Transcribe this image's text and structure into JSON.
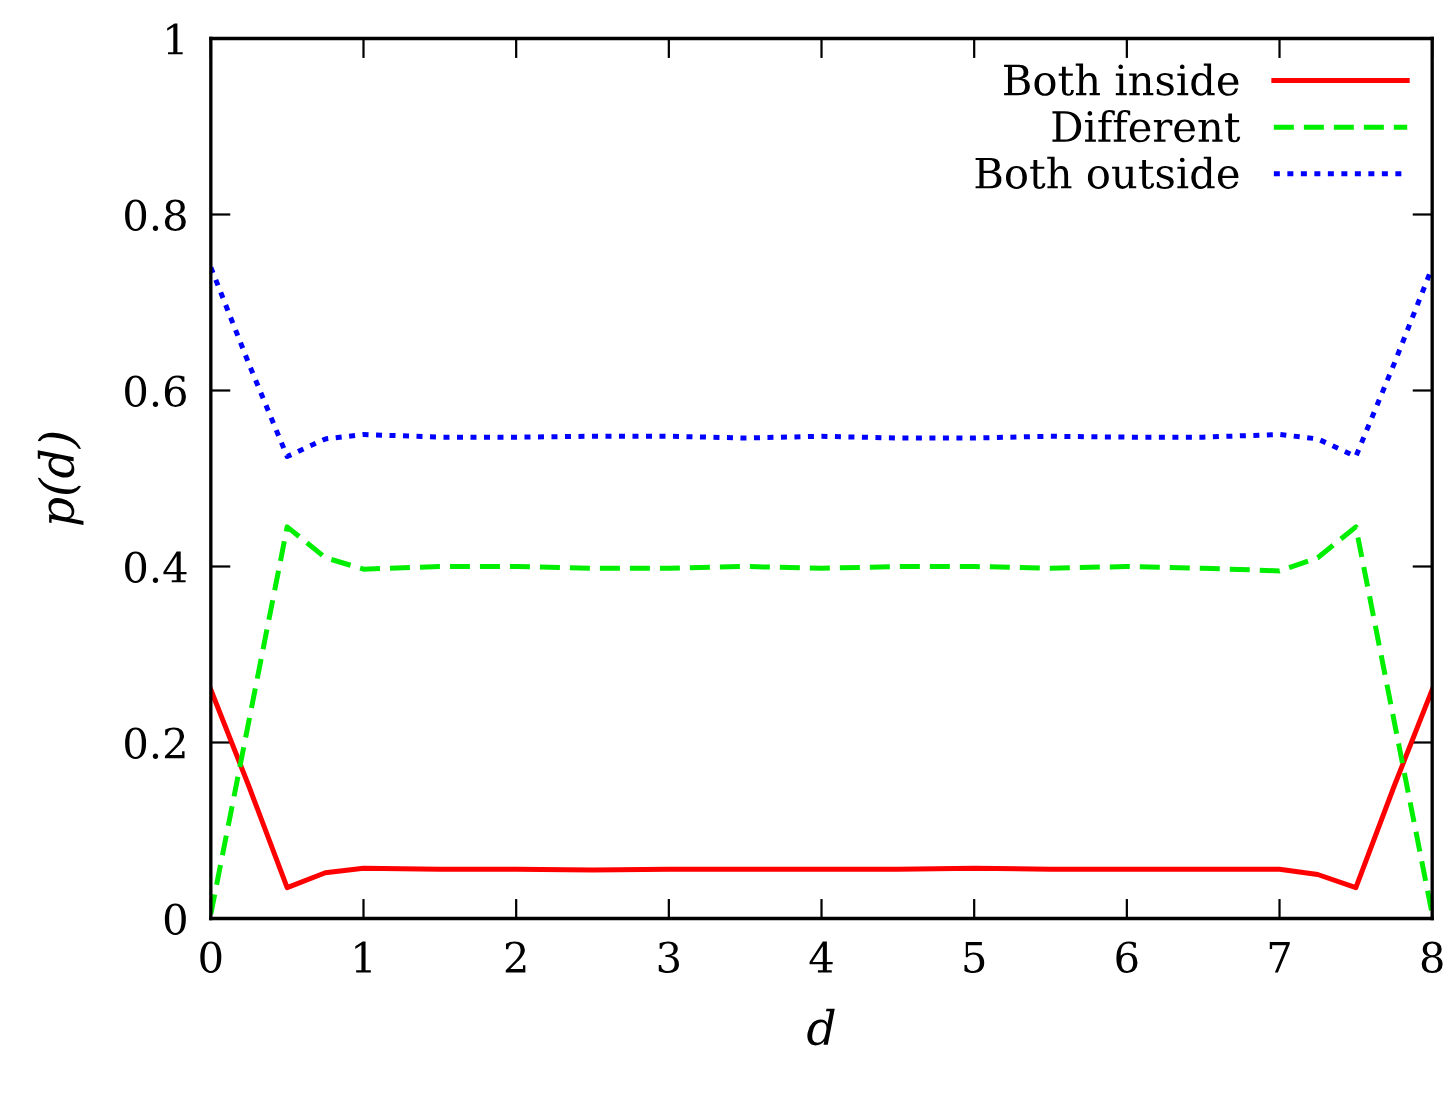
{
  "chart_data": {
    "type": "line",
    "xlabel": "d",
    "ylabel": "p(d)",
    "xlim": [
      0,
      8
    ],
    "ylim": [
      0,
      1
    ],
    "xticks": [
      0,
      1,
      2,
      3,
      4,
      5,
      6,
      7,
      8
    ],
    "yticks": [
      0,
      0.2,
      0.4,
      0.6,
      0.8,
      1
    ],
    "legend": "top right",
    "x": [
      0,
      0.25,
      0.5,
      0.75,
      1,
      1.5,
      2,
      2.5,
      3,
      3.5,
      4,
      4.5,
      5,
      5.5,
      6,
      6.5,
      7,
      7.25,
      7.5,
      7.75,
      8
    ],
    "series": [
      {
        "name": "Both inside",
        "color": "#ff0000",
        "line_style": "solid",
        "values": [
          0.26,
          0.15,
          0.035,
          0.052,
          0.057,
          0.056,
          0.056,
          0.055,
          0.056,
          0.056,
          0.056,
          0.056,
          0.057,
          0.056,
          0.056,
          0.056,
          0.056,
          0.05,
          0.035,
          0.15,
          0.26
        ]
      },
      {
        "name": "Different",
        "color": "#00ee00",
        "line_style": "dashed",
        "values": [
          0.005,
          0.225,
          0.445,
          0.41,
          0.397,
          0.4,
          0.4,
          0.398,
          0.398,
          0.4,
          0.398,
          0.4,
          0.4,
          0.398,
          0.4,
          0.398,
          0.395,
          0.41,
          0.445,
          0.225,
          0.005
        ]
      },
      {
        "name": "Both outside",
        "color": "#0000ff",
        "line_style": "dotted",
        "values": [
          0.74,
          0.63,
          0.525,
          0.545,
          0.55,
          0.547,
          0.547,
          0.548,
          0.548,
          0.546,
          0.548,
          0.546,
          0.546,
          0.548,
          0.547,
          0.547,
          0.55,
          0.545,
          0.525,
          0.63,
          0.74
        ]
      }
    ]
  }
}
